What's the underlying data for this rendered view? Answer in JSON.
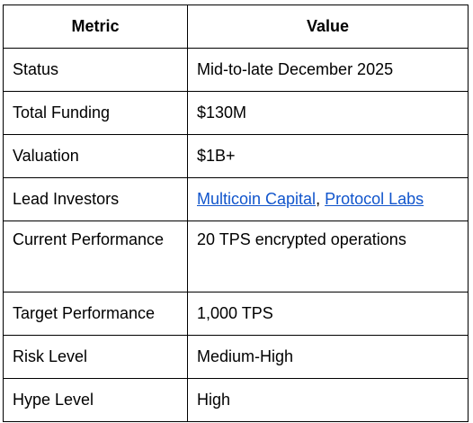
{
  "headers": [
    "Metric",
    "Value"
  ],
  "rows": [
    {
      "metric": "Status",
      "value": "Mid-to-late December 2025"
    },
    {
      "metric": "Total Funding",
      "value": "$130M"
    },
    {
      "metric": "Valuation",
      "value": "$1B+"
    },
    {
      "metric": "Lead Investors",
      "links": [
        "Multicoin Capital",
        "Protocol Labs"
      ],
      "separator": ", "
    },
    {
      "metric": "Current Performance",
      "value": "20 TPS encrypted operations"
    },
    {
      "metric": "Target Performance",
      "value": "1,000 TPS"
    },
    {
      "metric": "Risk Level",
      "value": "Medium-High"
    },
    {
      "metric": "Hype Level",
      "value": "High"
    }
  ],
  "link_color": "#1155cc"
}
